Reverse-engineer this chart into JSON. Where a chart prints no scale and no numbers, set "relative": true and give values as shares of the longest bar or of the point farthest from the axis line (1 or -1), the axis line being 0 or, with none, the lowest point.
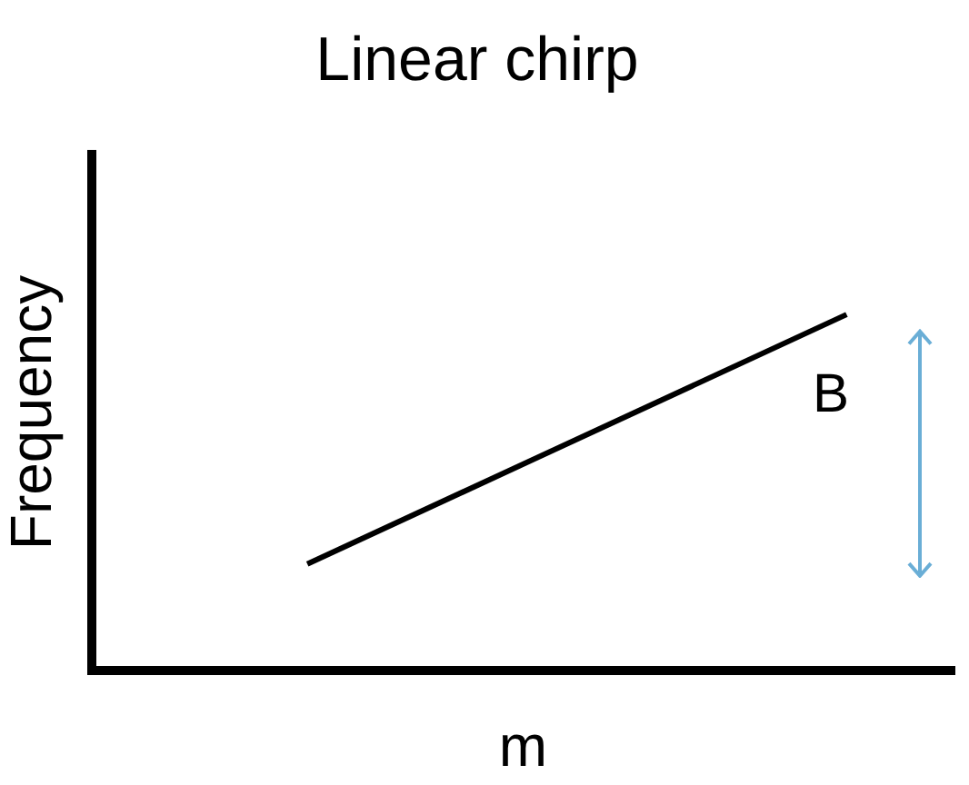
{
  "chart_data": {
    "type": "line",
    "title": "Linear chirp",
    "xlabel": "m",
    "ylabel": "Frequency",
    "relative": true,
    "categories": [
      null,
      null,
      null,
      null,
      null,
      null,
      null,
      null,
      null
    ],
    "series": [
      {
        "color": "#000000",
        "values": [
          null,
          null,
          0.3,
          null,
          null,
          null,
          null,
          1,
          null
        ]
      }
    ],
    "annotations": [
      "B"
    ],
    "legend": false,
    "grid": false,
    "marker": "none",
    "line_style": "solid"
  }
}
